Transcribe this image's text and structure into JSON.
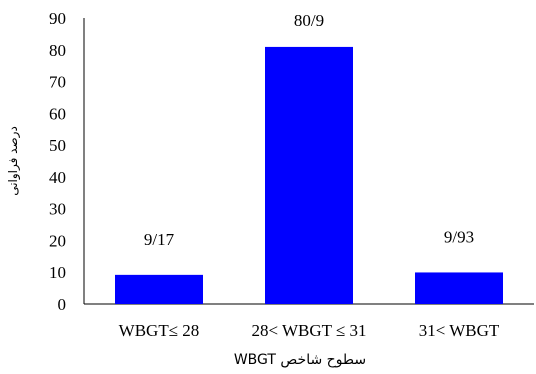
{
  "chart_data": {
    "type": "bar",
    "categories": [
      "WBGT≤ 28",
      "28< WBGT ≤ 31",
      "31<  WBGT"
    ],
    "values": [
      9.17,
      80.9,
      9.93
    ],
    "data_labels": [
      "9/17",
      "80/9",
      "9/93"
    ],
    "xlabel": "سطوح شاخص WBGT",
    "ylabel": "درصد فراوانی",
    "ylim": [
      0,
      90
    ],
    "yticks": [
      0,
      10,
      20,
      30,
      40,
      50,
      60,
      70,
      80,
      90
    ],
    "bar_color": "#0000FF",
    "grid": false,
    "legend": "none"
  }
}
